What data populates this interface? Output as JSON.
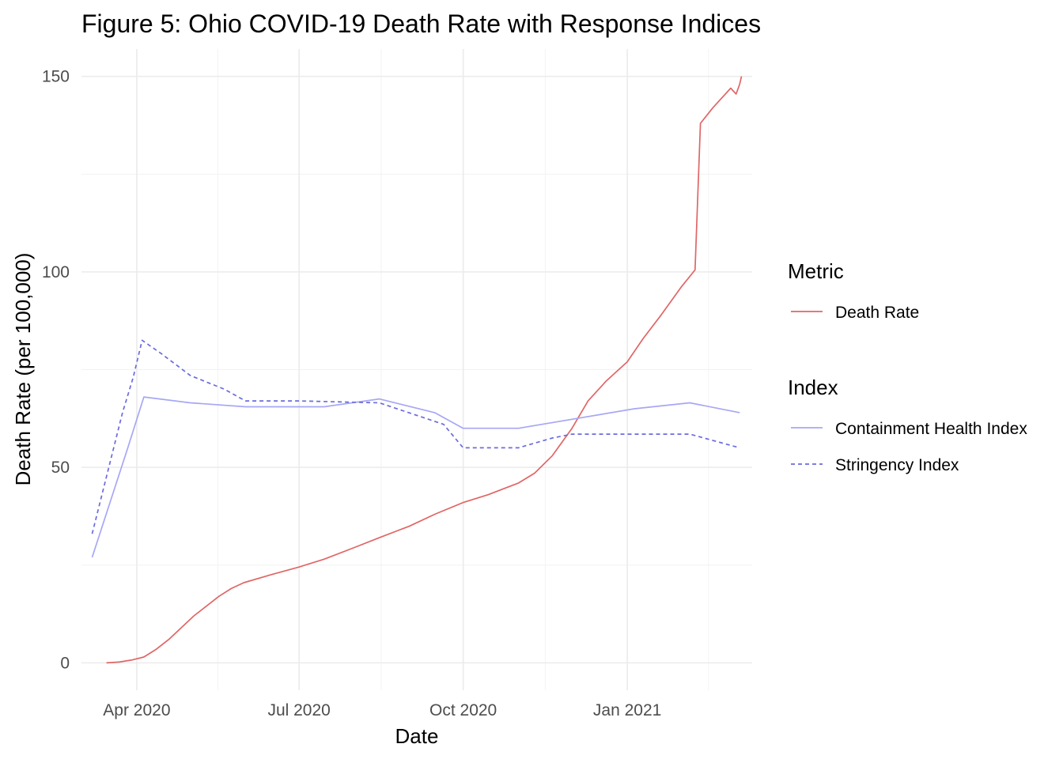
{
  "chart_data": {
    "type": "line",
    "title": "Figure 5: Ohio COVID-19 Death Rate with Response Indices",
    "xlabel": "Date",
    "ylabel": "Death Rate (per 100,000)",
    "xlim": [
      "2020-03-01",
      "2021-03-12"
    ],
    "ylim": [
      -7,
      157
    ],
    "x_ticks": [
      {
        "date": "2020-04-01",
        "label": "Apr 2020"
      },
      {
        "date": "2020-07-01",
        "label": "Jul 2020"
      },
      {
        "date": "2020-10-01",
        "label": "Oct 2020"
      },
      {
        "date": "2021-01-01",
        "label": "Jan 2021"
      }
    ],
    "y_ticks": [
      0,
      50,
      100,
      150
    ],
    "grid": true,
    "legend_position": "right",
    "legends": [
      {
        "title": "Metric",
        "entries": [
          "Death Rate"
        ]
      },
      {
        "title": "Index",
        "entries": [
          "Containment Health Index",
          "Stringency Index"
        ]
      }
    ],
    "series": [
      {
        "name": "Death Rate",
        "color": "#e06666",
        "dash": "solid",
        "points": [
          [
            "2020-03-15",
            0
          ],
          [
            "2020-03-22",
            0.2
          ],
          [
            "2020-03-29",
            0.7
          ],
          [
            "2020-04-05",
            1.5
          ],
          [
            "2020-04-12",
            3.5
          ],
          [
            "2020-04-19",
            6
          ],
          [
            "2020-04-26",
            9
          ],
          [
            "2020-05-03",
            12
          ],
          [
            "2020-05-10",
            14.5
          ],
          [
            "2020-05-17",
            17
          ],
          [
            "2020-05-24",
            19
          ],
          [
            "2020-05-31",
            20.5
          ],
          [
            "2020-06-15",
            22.5
          ],
          [
            "2020-07-01",
            24.5
          ],
          [
            "2020-07-15",
            26.5
          ],
          [
            "2020-08-01",
            29.5
          ],
          [
            "2020-08-15",
            32
          ],
          [
            "2020-09-01",
            35
          ],
          [
            "2020-09-15",
            38
          ],
          [
            "2020-10-01",
            41
          ],
          [
            "2020-10-15",
            43
          ],
          [
            "2020-11-01",
            46
          ],
          [
            "2020-11-10",
            48.5
          ],
          [
            "2020-11-20",
            53
          ],
          [
            "2020-12-01",
            60
          ],
          [
            "2020-12-10",
            67
          ],
          [
            "2020-12-20",
            72
          ],
          [
            "2021-01-01",
            77
          ],
          [
            "2021-01-10",
            83
          ],
          [
            "2021-01-20",
            89
          ],
          [
            "2021-01-31",
            96
          ],
          [
            "2021-02-08",
            100.5
          ],
          [
            "2021-02-11",
            138
          ],
          [
            "2021-02-18",
            142
          ],
          [
            "2021-02-28",
            147
          ],
          [
            "2021-03-03",
            145.5
          ],
          [
            "2021-03-05",
            148
          ],
          [
            "2021-03-06",
            150
          ]
        ]
      },
      {
        "name": "Containment Health Index",
        "color": "#a7a7f5",
        "dash": "solid",
        "points": [
          [
            "2020-03-07",
            27
          ],
          [
            "2020-03-27",
            55
          ],
          [
            "2020-04-05",
            68
          ],
          [
            "2020-05-01",
            66.5
          ],
          [
            "2020-06-01",
            65.5
          ],
          [
            "2020-07-15",
            65.5
          ],
          [
            "2020-08-15",
            67.5
          ],
          [
            "2020-09-15",
            64
          ],
          [
            "2020-10-01",
            60
          ],
          [
            "2020-11-01",
            60
          ],
          [
            "2021-01-05",
            65
          ],
          [
            "2021-02-05",
            66.5
          ],
          [
            "2021-03-05",
            64
          ]
        ]
      },
      {
        "name": "Stringency Index",
        "color": "#6b6bdd",
        "dash": "dashed",
        "points": [
          [
            "2020-03-07",
            33
          ],
          [
            "2020-03-24",
            64
          ],
          [
            "2020-03-30",
            73
          ],
          [
            "2020-04-04",
            82.5
          ],
          [
            "2020-04-15",
            79
          ],
          [
            "2020-05-01",
            73.5
          ],
          [
            "2020-05-20",
            70
          ],
          [
            "2020-06-01",
            67
          ],
          [
            "2020-07-01",
            67
          ],
          [
            "2020-08-15",
            66.5
          ],
          [
            "2020-09-20",
            61
          ],
          [
            "2020-10-01",
            55
          ],
          [
            "2020-11-01",
            55
          ],
          [
            "2020-11-20",
            57.5
          ],
          [
            "2020-12-01",
            58.5
          ],
          [
            "2021-02-05",
            58.5
          ],
          [
            "2021-03-05",
            55
          ]
        ]
      }
    ]
  }
}
